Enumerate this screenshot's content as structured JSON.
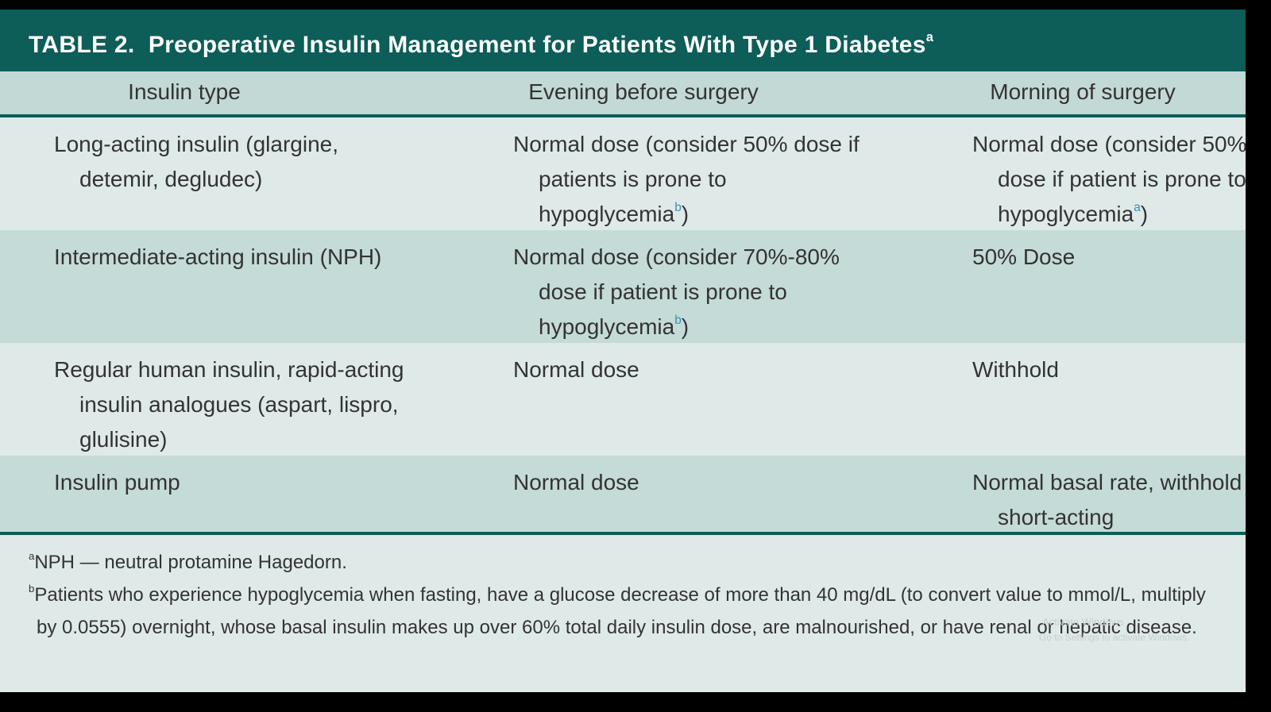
{
  "title": {
    "label": "TABLE 2.",
    "text": "Preoperative Insulin Management for Patients With Type 1 Diabetes",
    "sup": "a"
  },
  "table": {
    "header": [
      "Insulin type",
      "Evening before surgery",
      "Morning of surgery"
    ],
    "rows": [
      [
        {
          "text": "Long-acting insulin (glargine, detemir, degludec)"
        },
        {
          "text": "Normal dose (consider 50% dose if patients is prone to hypoglycemia",
          "sup": "b",
          "after": ")"
        },
        {
          "text": "Normal dose (consider 50% dose if patient is prone to hypoglycemia",
          "sup": "a",
          "after": ")"
        }
      ],
      [
        {
          "text": "Intermediate-acting insulin (NPH)"
        },
        {
          "text": "Normal dose (consider 70%-80% dose if patient is prone to hypoglycemia",
          "sup": "b",
          "after": ")"
        },
        {
          "text": "50% Dose"
        }
      ],
      [
        {
          "text": "Regular human insulin, rapid-acting insulin analogues (aspart, lispro, glulisine)"
        },
        {
          "text": "Normal dose"
        },
        {
          "text": "Withhold"
        }
      ],
      [
        {
          "text": "Insulin pump"
        },
        {
          "text": "Normal dose"
        },
        {
          "text": "Normal basal rate, withhold short-acting"
        }
      ]
    ]
  },
  "footnotes": [
    {
      "mark": "a",
      "text": "NPH — neutral protamine Hagedorn."
    },
    {
      "mark": "b",
      "text": "Patients who experience hypoglycemia when fasting, have a glucose decrease of more than 40 mg/dL (to convert value to mmol/L, multiply by 0.0555) overnight, whose basal insulin makes up over 60% total daily insulin dose, are malnourished, or have renal or hepatic disease."
    }
  ],
  "watermark": [
    "Activate Windows",
    "Go to Settings to activate Windows."
  ]
}
